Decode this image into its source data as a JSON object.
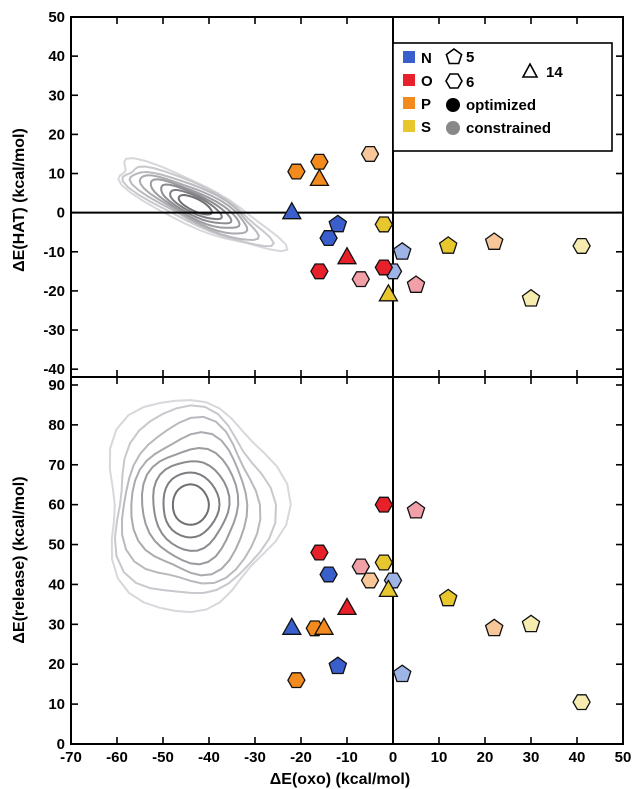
{
  "chart_data": [
    {
      "panel": "top",
      "type": "scatter",
      "xlabel": "ΔE(oxo) (kcal/mol)",
      "ylabel": "ΔE(HAT) (kcal/mol)",
      "xlim": [
        -70,
        50
      ],
      "ylim": [
        -42,
        50
      ],
      "x_ticks": [
        -70,
        -60,
        -50,
        -40,
        -30,
        -20,
        -10,
        0,
        10,
        20,
        30,
        40,
        50
      ],
      "y_ticks": [
        -40,
        -30,
        -20,
        -10,
        0,
        10,
        20,
        30,
        40,
        50
      ],
      "reference_lines": {
        "x": 0,
        "y": 0
      },
      "contour_center": [
        -43,
        2
      ],
      "points": [
        {
          "x": -21,
          "y": 10.5,
          "element": "P",
          "ring": "6",
          "geometry": "optimized"
        },
        {
          "x": -16,
          "y": 13,
          "element": "P",
          "ring": "6",
          "geometry": "optimized"
        },
        {
          "x": -16,
          "y": 8.5,
          "element": "P",
          "ring": "14",
          "geometry": "optimized"
        },
        {
          "x": -5,
          "y": 15,
          "element": "P",
          "ring": "6",
          "geometry": "constrained"
        },
        {
          "x": -22,
          "y": 0,
          "element": "N",
          "ring": "14",
          "geometry": "optimized"
        },
        {
          "x": -12,
          "y": -3,
          "element": "N",
          "ring": "5",
          "geometry": "optimized"
        },
        {
          "x": -14,
          "y": -6.5,
          "element": "N",
          "ring": "6",
          "geometry": "optimized"
        },
        {
          "x": 2,
          "y": -10,
          "element": "N",
          "ring": "5",
          "geometry": "constrained"
        },
        {
          "x": 0,
          "y": -15,
          "element": "N",
          "ring": "6",
          "geometry": "constrained"
        },
        {
          "x": -2,
          "y": -3,
          "element": "S",
          "ring": "6",
          "geometry": "optimized"
        },
        {
          "x": -1,
          "y": -21,
          "element": "S",
          "ring": "14",
          "geometry": "optimized"
        },
        {
          "x": 12,
          "y": -8.5,
          "element": "S",
          "ring": "5",
          "geometry": "optimized"
        },
        {
          "x": 22,
          "y": -7.5,
          "element": "P",
          "ring": "5",
          "geometry": "constrained"
        },
        {
          "x": 30,
          "y": -22,
          "element": "S",
          "ring": "5",
          "geometry": "constrained"
        },
        {
          "x": 41,
          "y": -8.5,
          "element": "S",
          "ring": "6",
          "geometry": "constrained"
        },
        {
          "x": -10,
          "y": -11.5,
          "element": "O",
          "ring": "14",
          "geometry": "optimized"
        },
        {
          "x": -16,
          "y": -15,
          "element": "O",
          "ring": "6",
          "geometry": "optimized"
        },
        {
          "x": -2,
          "y": -14,
          "element": "O",
          "ring": "6",
          "geometry": "optimized"
        },
        {
          "x": -7,
          "y": -17,
          "element": "O",
          "ring": "6",
          "geometry": "constrained"
        },
        {
          "x": 5,
          "y": -18.5,
          "element": "O",
          "ring": "5",
          "geometry": "constrained"
        }
      ]
    },
    {
      "panel": "bottom",
      "type": "scatter",
      "xlabel": "ΔE(oxo) (kcal/mol)",
      "ylabel": "ΔE(release) (kcal/mol)",
      "xlim": [
        -70,
        50
      ],
      "ylim": [
        0,
        92
      ],
      "x_ticks": [
        -70,
        -60,
        -50,
        -40,
        -30,
        -20,
        -10,
        0,
        10,
        20,
        30,
        40,
        50
      ],
      "y_ticks": [
        0,
        10,
        20,
        30,
        40,
        50,
        60,
        70,
        80,
        90
      ],
      "reference_lines": {
        "x": 0
      },
      "contour_center": [
        -44,
        60
      ],
      "points": [
        {
          "x": -2,
          "y": 60,
          "element": "O",
          "ring": "6",
          "geometry": "optimized"
        },
        {
          "x": 5,
          "y": 58.5,
          "element": "O",
          "ring": "5",
          "geometry": "constrained"
        },
        {
          "x": -16,
          "y": 48,
          "element": "O",
          "ring": "6",
          "geometry": "optimized"
        },
        {
          "x": -7,
          "y": 44.5,
          "element": "O",
          "ring": "6",
          "geometry": "constrained"
        },
        {
          "x": -5,
          "y": 41,
          "element": "P",
          "ring": "6",
          "geometry": "constrained"
        },
        {
          "x": -14,
          "y": 42.5,
          "element": "N",
          "ring": "6",
          "geometry": "optimized"
        },
        {
          "x": -2,
          "y": 45.5,
          "element": "S",
          "ring": "6",
          "geometry": "optimized"
        },
        {
          "x": 0,
          "y": 41,
          "element": "N",
          "ring": "6",
          "geometry": "constrained"
        },
        {
          "x": -1,
          "y": 38.5,
          "element": "S",
          "ring": "14",
          "geometry": "optimized"
        },
        {
          "x": 12,
          "y": 36.5,
          "element": "S",
          "ring": "5",
          "geometry": "optimized"
        },
        {
          "x": -10,
          "y": 34,
          "element": "O",
          "ring": "14",
          "geometry": "optimized"
        },
        {
          "x": -22,
          "y": 29,
          "element": "N",
          "ring": "14",
          "geometry": "optimized"
        },
        {
          "x": -17,
          "y": 29,
          "element": "P",
          "ring": "6",
          "geometry": "optimized"
        },
        {
          "x": -15,
          "y": 29,
          "element": "P",
          "ring": "14",
          "geometry": "optimized"
        },
        {
          "x": 22,
          "y": 29,
          "element": "P",
          "ring": "5",
          "geometry": "constrained"
        },
        {
          "x": 30,
          "y": 30,
          "element": "S",
          "ring": "5",
          "geometry": "constrained"
        },
        {
          "x": -12,
          "y": 19.5,
          "element": "N",
          "ring": "5",
          "geometry": "optimized"
        },
        {
          "x": 2,
          "y": 17.5,
          "element": "N",
          "ring": "5",
          "geometry": "constrained"
        },
        {
          "x": -21,
          "y": 16,
          "element": "P",
          "ring": "6",
          "geometry": "optimized"
        },
        {
          "x": 41,
          "y": 10.5,
          "element": "S",
          "ring": "6",
          "geometry": "constrained"
        }
      ]
    }
  ],
  "legend": {
    "elements": [
      {
        "label": "N",
        "color": "#3a5fcd"
      },
      {
        "label": "O",
        "color": "#e8202a"
      },
      {
        "label": "P",
        "color": "#f28a1e"
      },
      {
        "label": "S",
        "color": "#e8c72e"
      }
    ],
    "shapes": [
      {
        "label": "5",
        "shape": "pentagon"
      },
      {
        "label": "6",
        "shape": "hexagon"
      },
      {
        "label": "14",
        "shape": "triangle"
      }
    ],
    "fills": [
      {
        "label": "optimized",
        "color": "#000000"
      },
      {
        "label": "constrained",
        "color": "#888888"
      }
    ]
  },
  "colors": {
    "optimized": {
      "N": "#3a5fcd",
      "O": "#e8202a",
      "P": "#f28a1e",
      "S": "#e8c72e"
    },
    "constrained": {
      "N": "#9fb4e6",
      "O": "#f2a0a8",
      "P": "#f7c79a",
      "S": "#f7ecb0"
    }
  }
}
